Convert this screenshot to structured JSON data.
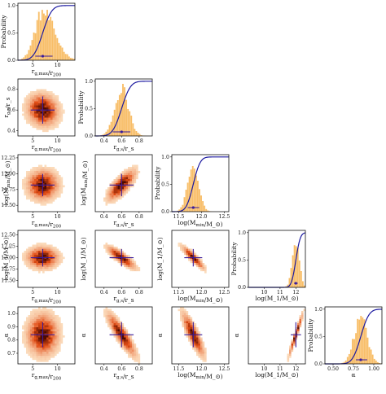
{
  "caption": "",
  "colors": {
    "hist": "#f7b34d",
    "cdf": "#1c1aa0",
    "density_low": "#fde6c8",
    "density_high": "#4d0a00",
    "marker": "#3a1c9a",
    "axis": "#111111"
  },
  "chart_data": {
    "type": "corner",
    "variables": [
      {
        "key": "rgmax",
        "label": "r_{g,max}/r_{200}",
        "ticks": [
          5,
          10
        ],
        "range": [
          2,
          13.5
        ],
        "mean": 7.0,
        "ci": [
          5.5,
          9.0
        ],
        "sd": 1.6
      },
      {
        "key": "rgrs",
        "label": "r_{g,s}/r_s",
        "ticks": [
          0.4,
          0.6,
          0.8
        ],
        "tick_labels": [
          "0.4",
          "0.6",
          "0.8"
        ],
        "range": [
          0.3,
          0.95
        ],
        "mean": 0.6,
        "ci": [
          0.5,
          0.7
        ],
        "sd": 0.08
      },
      {
        "key": "mmin",
        "label": "log(M_{min}/M_⊙)",
        "ticks": [
          11.5,
          12.0,
          12.5
        ],
        "tick_labels": [
          "11.5",
          "12.0",
          "12.5"
        ],
        "range": [
          11.35,
          12.6
        ],
        "mean": 11.82,
        "ci": [
          11.7,
          11.95
        ],
        "sd": 0.12
      },
      {
        "key": "m1",
        "label": "log(M_1/M_⊙)",
        "ticks": [
          10,
          11,
          12
        ],
        "range": [
          9.0,
          12.6
        ],
        "mean": 12.0,
        "ci": [
          11.88,
          12.12
        ],
        "sd": 0.22
      },
      {
        "key": "alpha",
        "label": "α",
        "ticks": [
          0.5,
          0.75,
          1.0
        ],
        "tick_labels": [
          "0.50",
          "0.75",
          "1.00"
        ],
        "range": [
          0.4,
          1.1
        ],
        "mean": 0.84,
        "ci": [
          0.78,
          0.92
        ],
        "sd": 0.08
      }
    ],
    "diag_ylabel": "Probability",
    "diag_yticks": [
      0.0,
      0.5,
      1.0
    ],
    "diag_ytick_labels": [
      "0.0",
      "0.5",
      "1.0"
    ],
    "row_yticks": {
      "rgrs": [
        0.4,
        0.6,
        0.8
      ],
      "mmin": [
        11.5,
        11.75,
        12.0,
        12.25
      ],
      "m1": [
        11.5,
        11.75,
        12.0,
        12.25,
        12.5
      ],
      "alpha": [
        0.7,
        0.8,
        0.9,
        1.0
      ]
    },
    "row_ytick_labels": {
      "rgrs": [
        "0.4",
        "0.6",
        "0.8"
      ],
      "mmin": [
        "11.50",
        "11.75",
        "12.00",
        "12.25"
      ],
      "m1": [
        "11.50",
        "11.75",
        "12.00",
        "12.25",
        "12.50"
      ],
      "alpha": [
        "0.7",
        "0.8",
        "0.9",
        "1.0"
      ]
    },
    "row_ranges": {
      "rgrs": [
        0.35,
        0.9
      ],
      "mmin": [
        11.4,
        12.3
      ],
      "m1": [
        11.35,
        12.6
      ],
      "alpha": [
        0.62,
        1.05
      ]
    },
    "correlations": [
      {
        "row": "rgrs",
        "col": "rgmax",
        "rho": -0.1
      },
      {
        "row": "mmin",
        "col": "rgmax",
        "rho": 0.0
      },
      {
        "row": "mmin",
        "col": "rgrs",
        "rho": 0.75
      },
      {
        "row": "m1",
        "col": "rgmax",
        "rho": 0.0
      },
      {
        "row": "m1",
        "col": "rgrs",
        "rho": -0.85
      },
      {
        "row": "m1",
        "col": "mmin",
        "rho": -0.9
      },
      {
        "row": "alpha",
        "col": "rgmax",
        "rho": 0.0
      },
      {
        "row": "alpha",
        "col": "rgrs",
        "rho": -0.88
      },
      {
        "row": "alpha",
        "col": "mmin",
        "rho": -0.85
      },
      {
        "row": "alpha",
        "col": "m1",
        "rho": 0.97
      }
    ]
  }
}
